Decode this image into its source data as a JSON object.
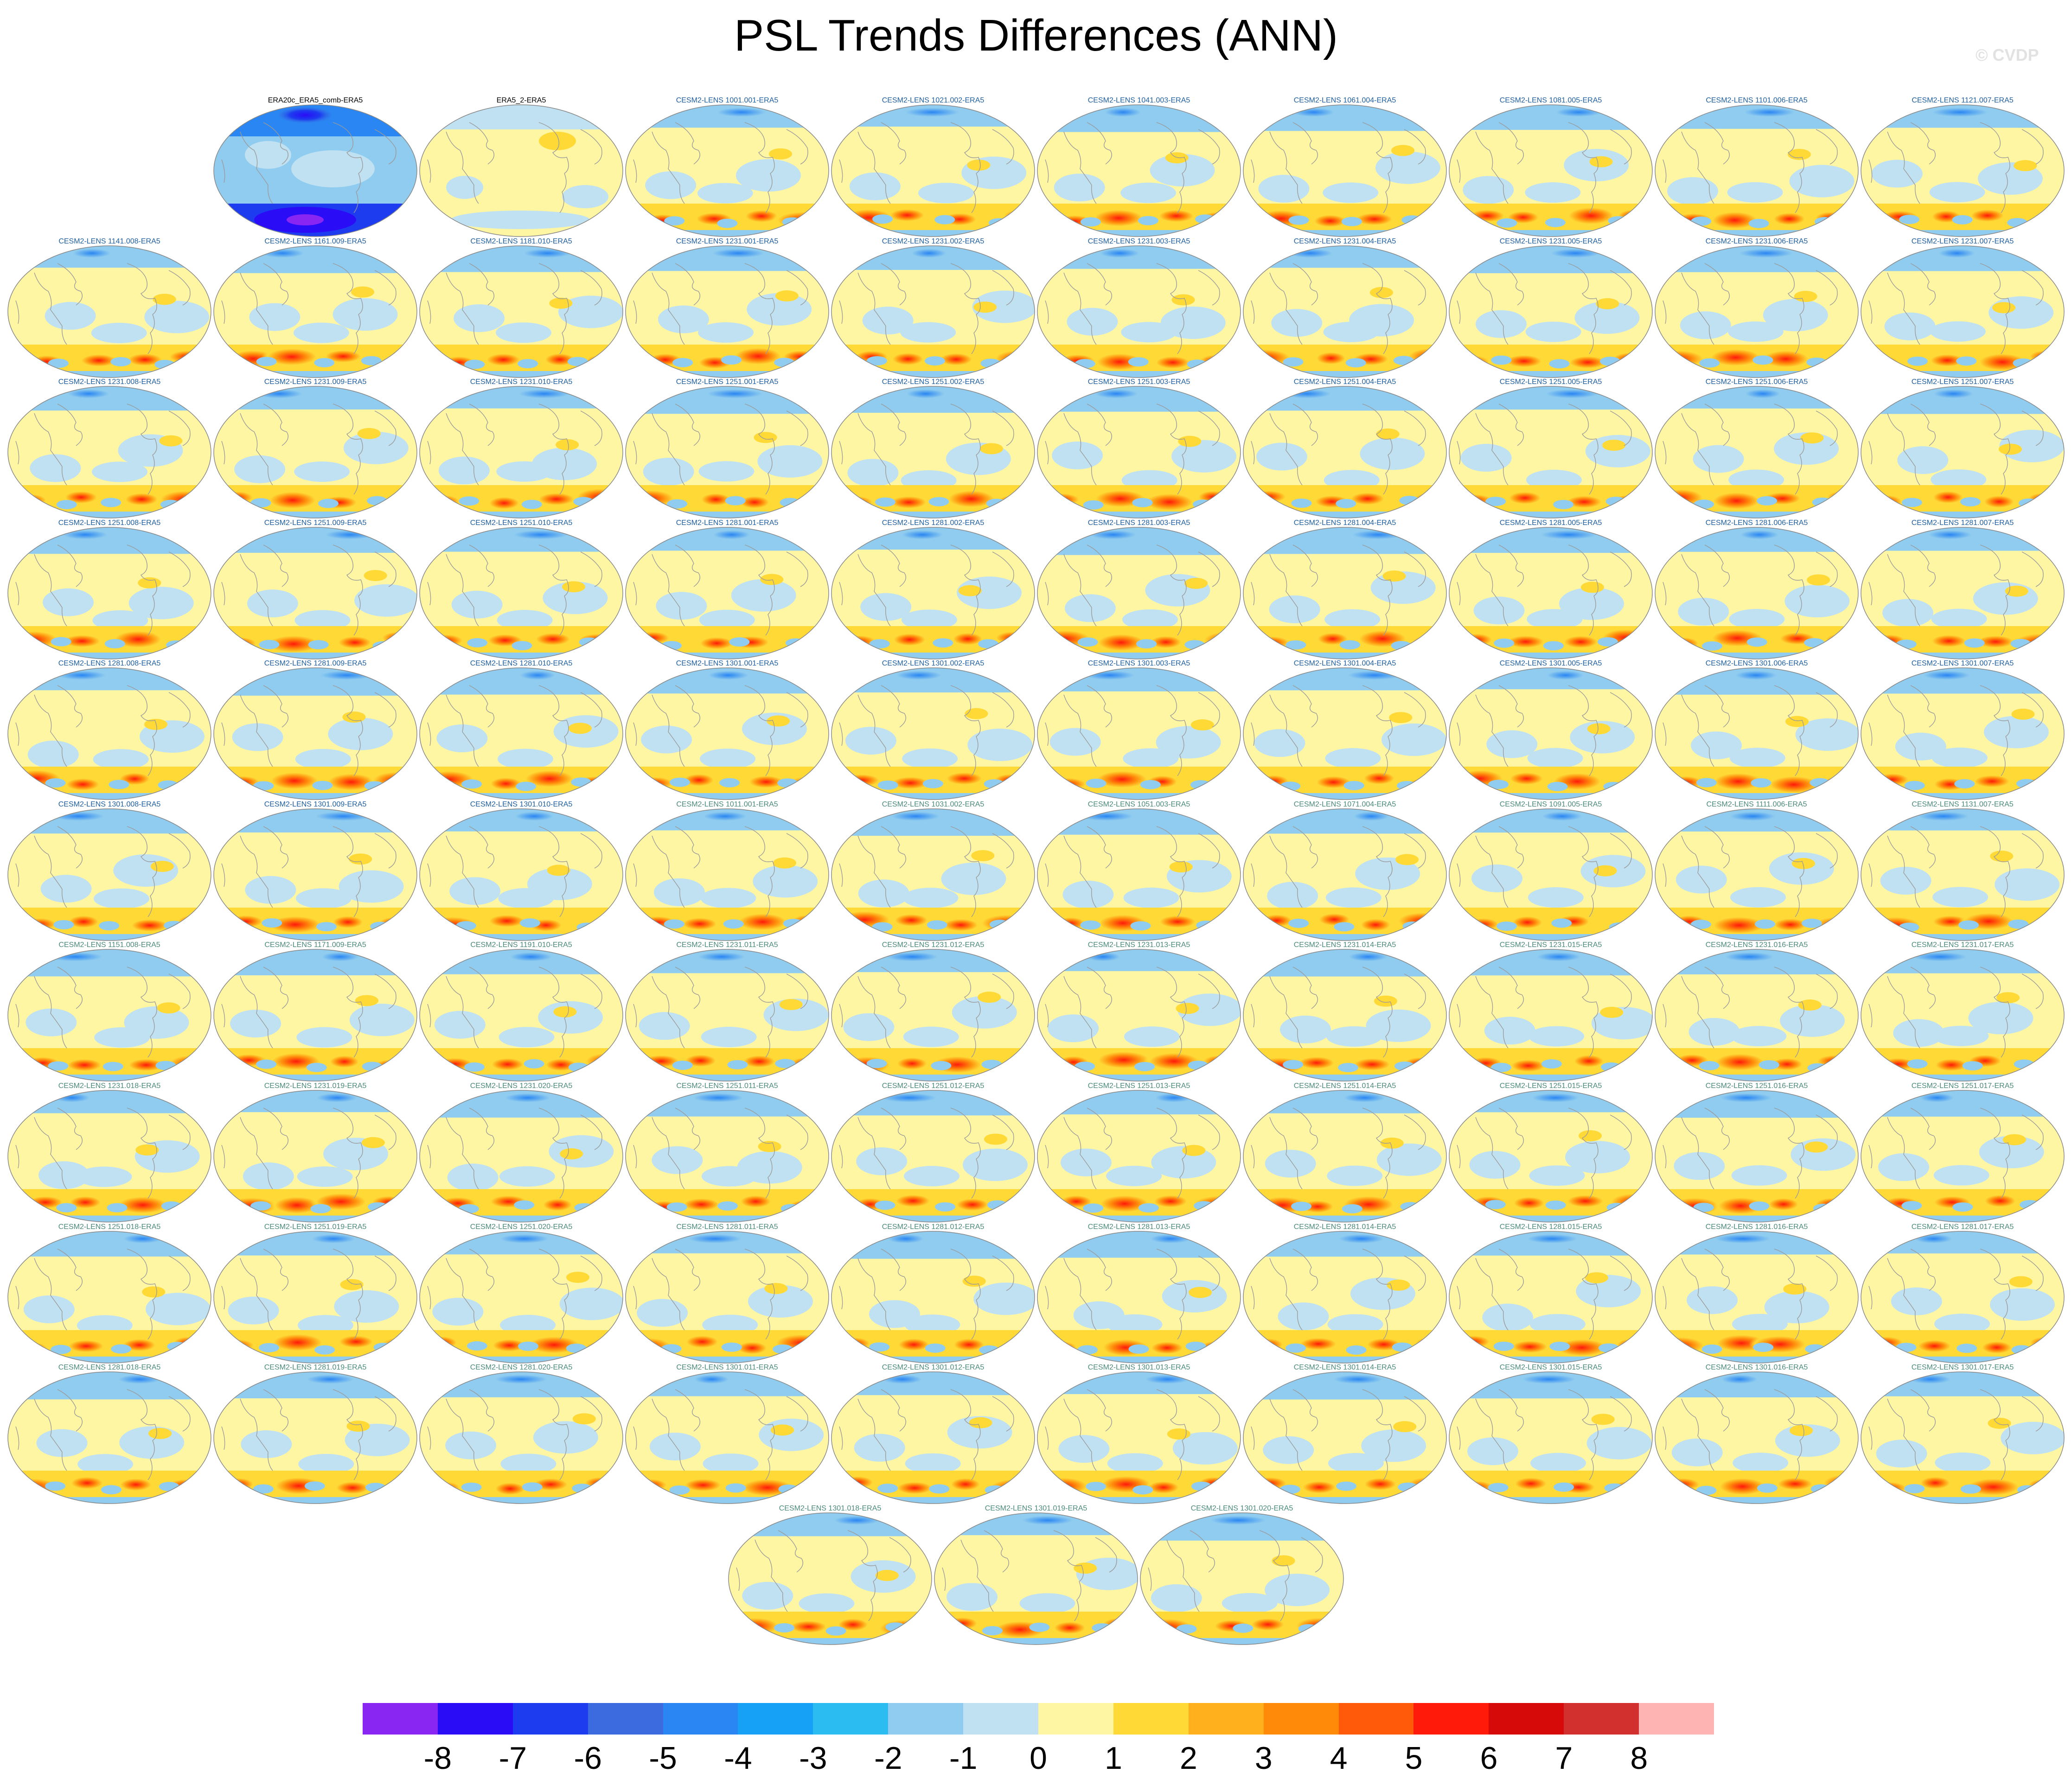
{
  "title": "PSL Trends Differences (ANN)",
  "watermark": "© CVDP",
  "chart_data": {
    "type": "heatmap",
    "title": "PSL Trends Differences (ANN)",
    "projection": "global ellipse map",
    "panels": [
      "ERA20c_ERA5_comb-ERA5",
      "ERA5_2-ERA5",
      "CESM2-LENS 1001.001-ERA5",
      "CESM2-LENS 1021.002-ERA5",
      "CESM2-LENS 1041.003-ERA5",
      "CESM2-LENS 1061.004-ERA5",
      "CESM2-LENS 1081.005-ERA5",
      "CESM2-LENS 1101.006-ERA5",
      "CESM2-LENS 1121.007-ERA5",
      "CESM2-LENS 1141.008-ERA5",
      "CESM2-LENS 1161.009-ERA5",
      "CESM2-LENS 1181.010-ERA5",
      "CESM2-LENS 1231.001-ERA5",
      "CESM2-LENS 1231.002-ERA5",
      "CESM2-LENS 1231.003-ERA5",
      "CESM2-LENS 1231.004-ERA5",
      "CESM2-LENS 1231.005-ERA5",
      "CESM2-LENS 1231.006-ERA5",
      "CESM2-LENS 1231.007-ERA5",
      "CESM2-LENS 1231.008-ERA5",
      "CESM2-LENS 1231.009-ERA5",
      "CESM2-LENS 1231.010-ERA5",
      "CESM2-LENS 1251.001-ERA5",
      "CESM2-LENS 1251.002-ERA5",
      "CESM2-LENS 1251.003-ERA5",
      "CESM2-LENS 1251.004-ERA5",
      "CESM2-LENS 1251.005-ERA5",
      "CESM2-LENS 1251.006-ERA5",
      "CESM2-LENS 1251.007-ERA5",
      "CESM2-LENS 1251.008-ERA5",
      "CESM2-LENS 1251.009-ERA5",
      "CESM2-LENS 1251.010-ERA5",
      "CESM2-LENS 1281.001-ERA5",
      "CESM2-LENS 1281.002-ERA5",
      "CESM2-LENS 1281.003-ERA5",
      "CESM2-LENS 1281.004-ERA5",
      "CESM2-LENS 1281.005-ERA5",
      "CESM2-LENS 1281.006-ERA5",
      "CESM2-LENS 1281.007-ERA5",
      "CESM2-LENS 1281.008-ERA5",
      "CESM2-LENS 1281.009-ERA5",
      "CESM2-LENS 1281.010-ERA5",
      "CESM2-LENS 1301.001-ERA5",
      "CESM2-LENS 1301.002-ERA5",
      "CESM2-LENS 1301.003-ERA5",
      "CESM2-LENS 1301.004-ERA5",
      "CESM2-LENS 1301.005-ERA5",
      "CESM2-LENS 1301.006-ERA5",
      "CESM2-LENS 1301.007-ERA5",
      "CESM2-LENS 1301.008-ERA5",
      "CESM2-LENS 1301.009-ERA5",
      "CESM2-LENS 1301.010-ERA5",
      "CESM2-LENS 1011.001-ERA5",
      "CESM2-LENS 1031.002-ERA5",
      "CESM2-LENS 1051.003-ERA5",
      "CESM2-LENS 1071.004-ERA5",
      "CESM2-LENS 1091.005-ERA5",
      "CESM2-LENS 1111.006-ERA5",
      "CESM2-LENS 1131.007-ERA5",
      "CESM2-LENS 1151.008-ERA5",
      "CESM2-LENS 1171.009-ERA5",
      "CESM2-LENS 1191.010-ERA5",
      "CESM2-LENS 1231.011-ERA5",
      "CESM2-LENS 1231.012-ERA5",
      "CESM2-LENS 1231.013-ERA5",
      "CESM2-LENS 1231.014-ERA5",
      "CESM2-LENS 1231.015-ERA5",
      "CESM2-LENS 1231.016-ERA5",
      "CESM2-LENS 1231.017-ERA5",
      "CESM2-LENS 1231.018-ERA5",
      "CESM2-LENS 1231.019-ERA5",
      "CESM2-LENS 1231.020-ERA5",
      "CESM2-LENS 1251.011-ERA5",
      "CESM2-LENS 1251.012-ERA5",
      "CESM2-LENS 1251.013-ERA5",
      "CESM2-LENS 1251.014-ERA5",
      "CESM2-LENS 1251.015-ERA5",
      "CESM2-LENS 1251.016-ERA5",
      "CESM2-LENS 1251.017-ERA5",
      "CESM2-LENS 1251.018-ERA5",
      "CESM2-LENS 1251.019-ERA5",
      "CESM2-LENS 1251.020-ERA5",
      "CESM2-LENS 1281.011-ERA5",
      "CESM2-LENS 1281.012-ERA5",
      "CESM2-LENS 1281.013-ERA5",
      "CESM2-LENS 1281.014-ERA5",
      "CESM2-LENS 1281.015-ERA5",
      "CESM2-LENS 1281.016-ERA5",
      "CESM2-LENS 1281.017-ERA5",
      "CESM2-LENS 1281.018-ERA5",
      "CESM2-LENS 1281.019-ERA5",
      "CESM2-LENS 1281.020-ERA5",
      "CESM2-LENS 1301.011-ERA5",
      "CESM2-LENS 1301.012-ERA5",
      "CESM2-LENS 1301.013-ERA5",
      "CESM2-LENS 1301.014-ERA5",
      "CESM2-LENS 1301.015-ERA5",
      "CESM2-LENS 1301.016-ERA5",
      "CESM2-LENS 1301.017-ERA5",
      "CESM2-LENS 1301.018-ERA5",
      "CESM2-LENS 1301.019-ERA5",
      "CESM2-LENS 1301.020-ERA5"
    ],
    "colorbar": {
      "ticks": [
        "-8",
        "-7",
        "-6",
        "-5",
        "-4",
        "-3",
        "-2",
        "-1",
        "0",
        "1",
        "2",
        "3",
        "4",
        "5",
        "6",
        "7",
        "8"
      ],
      "colors": [
        "#8a26f2",
        "#2a0cf6",
        "#1d3cf0",
        "#3c6be0",
        "#2986f2",
        "#16a0f6",
        "#2bbcf2",
        "#8fccef",
        "#bfe1f1",
        "#fff6a3",
        "#ffd935",
        "#ffb01c",
        "#ff8a0a",
        "#ff5a0a",
        "#ff1a0a",
        "#d70a0a",
        "#d2302f",
        "#ffb4b4"
      ]
    }
  }
}
